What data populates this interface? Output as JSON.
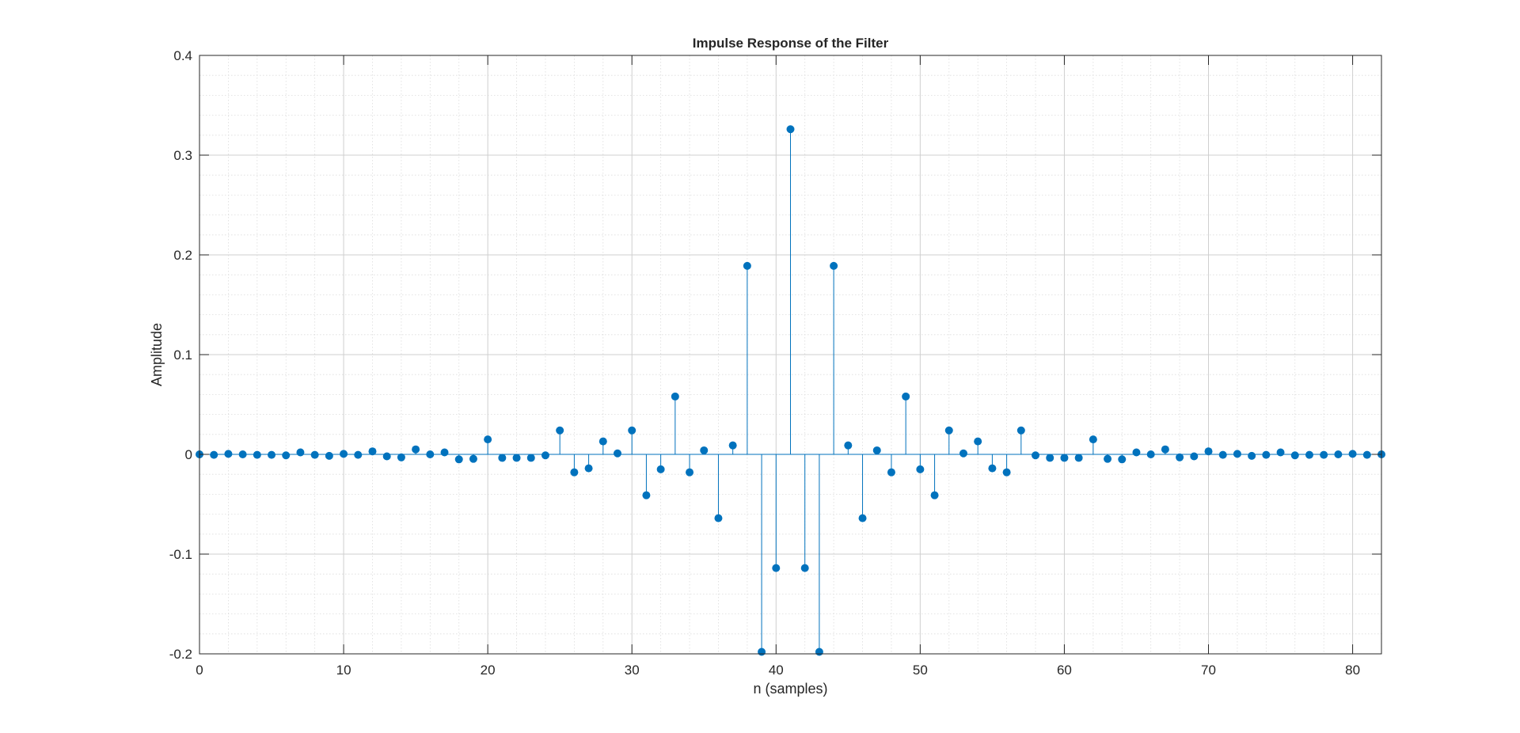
{
  "chart_data": {
    "type": "stem",
    "title": "Impulse Response of the Filter",
    "xlabel": "n (samples)",
    "ylabel": "Amplitude",
    "xlim": [
      0,
      82
    ],
    "ylim": [
      -0.2,
      0.4
    ],
    "xticks": [
      0,
      10,
      20,
      30,
      40,
      50,
      60,
      70,
      80
    ],
    "xtick_labels": [
      "0",
      "10",
      "20",
      "30",
      "40",
      "50",
      "60",
      "70",
      "80"
    ],
    "yticks": [
      -0.2,
      -0.1,
      0,
      0.1,
      0.2,
      0.3,
      0.4
    ],
    "ytick_labels": [
      "-0.2",
      "-0.1",
      "0",
      "0.1",
      "0.2",
      "0.3",
      "0.4"
    ],
    "grid": true,
    "minor_grid": true,
    "color": "#0072BD",
    "x": [
      0,
      1,
      2,
      3,
      4,
      5,
      6,
      7,
      8,
      9,
      10,
      11,
      12,
      13,
      14,
      15,
      16,
      17,
      18,
      19,
      20,
      21,
      22,
      23,
      24,
      25,
      26,
      27,
      28,
      29,
      30,
      31,
      32,
      33,
      34,
      35,
      36,
      37,
      38,
      39,
      40,
      41,
      42,
      43,
      44,
      45,
      46,
      47,
      48,
      49,
      50,
      51,
      52,
      53,
      54,
      55,
      56,
      57,
      58,
      59,
      60,
      61,
      62,
      63,
      64,
      65,
      66,
      67,
      68,
      69,
      70,
      71,
      72,
      73,
      74,
      75,
      76,
      77,
      78,
      79,
      80,
      81,
      82
    ],
    "values": [
      0,
      -0.0005,
      0.0005,
      0,
      -0.0005,
      -0.0005,
      -0.001,
      0.002,
      -0.0005,
      -0.0015,
      0.0005,
      -0.0005,
      0.003,
      -0.002,
      -0.003,
      0.005,
      0,
      0.002,
      -0.005,
      -0.0045,
      0.015,
      -0.0035,
      -0.0035,
      -0.0035,
      -0.001,
      0.024,
      -0.018,
      -0.014,
      0.013,
      0.001,
      0.024,
      -0.041,
      -0.015,
      0.058,
      -0.018,
      0.004,
      -0.064,
      0.009,
      0.189,
      -0.198,
      -0.114,
      0.326,
      -0.114,
      -0.198,
      0.189,
      0.009,
      -0.064,
      0.004,
      -0.018,
      0.058,
      -0.015,
      -0.041,
      0.024,
      0.001,
      0.013,
      -0.014,
      -0.018,
      0.024,
      -0.001,
      -0.0035,
      -0.0035,
      -0.0035,
      0.015,
      -0.0045,
      -0.005,
      0.002,
      0,
      0.005,
      -0.003,
      -0.002,
      0.003,
      -0.0005,
      0.0005,
      -0.0015,
      -0.0005,
      0.002,
      -0.001,
      -0.0005,
      -0.0005,
      0,
      0.0005,
      -0.0005,
      0
    ]
  }
}
